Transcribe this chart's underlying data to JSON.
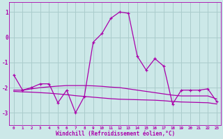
{
  "x": [
    0,
    1,
    2,
    3,
    4,
    5,
    6,
    7,
    8,
    9,
    10,
    11,
    12,
    13,
    14,
    15,
    16,
    17,
    18,
    19,
    20,
    21,
    22,
    23
  ],
  "y_main": [
    -1.5,
    -2.1,
    -2.0,
    -1.85,
    -1.85,
    -2.6,
    -2.1,
    -3.0,
    -2.35,
    -0.2,
    0.15,
    0.75,
    1.0,
    0.95,
    -0.75,
    -1.3,
    -0.85,
    -1.15,
    -2.65,
    -2.1,
    -2.1,
    -2.1,
    -2.05,
    -2.55
  ],
  "y_line2": [
    -2.1,
    -2.1,
    -2.05,
    -2.0,
    -1.97,
    -1.94,
    -1.92,
    -1.92,
    -1.92,
    -1.93,
    -1.95,
    -1.98,
    -2.0,
    -2.05,
    -2.1,
    -2.15,
    -2.2,
    -2.25,
    -2.3,
    -2.33,
    -2.33,
    -2.33,
    -2.33,
    -2.45
  ],
  "y_line3": [
    -2.15,
    -2.17,
    -2.18,
    -2.2,
    -2.22,
    -2.25,
    -2.28,
    -2.32,
    -2.35,
    -2.38,
    -2.41,
    -2.44,
    -2.46,
    -2.47,
    -2.48,
    -2.49,
    -2.5,
    -2.52,
    -2.55,
    -2.57,
    -2.58,
    -2.59,
    -2.6,
    -2.65
  ],
  "bgcolor": "#cce8e8",
  "grid_color": "#aacccc",
  "line_color": "#aa00aa",
  "xlabel": "Windchill (Refroidissement éolien,°C)",
  "ylim": [
    -3.5,
    1.4
  ],
  "xlim": [
    -0.5,
    23.5
  ],
  "yticks": [
    -3,
    -2,
    -1,
    0,
    1
  ],
  "xticks": [
    0,
    1,
    2,
    3,
    4,
    5,
    6,
    7,
    8,
    9,
    10,
    11,
    12,
    13,
    14,
    15,
    16,
    17,
    18,
    19,
    20,
    21,
    22,
    23
  ]
}
